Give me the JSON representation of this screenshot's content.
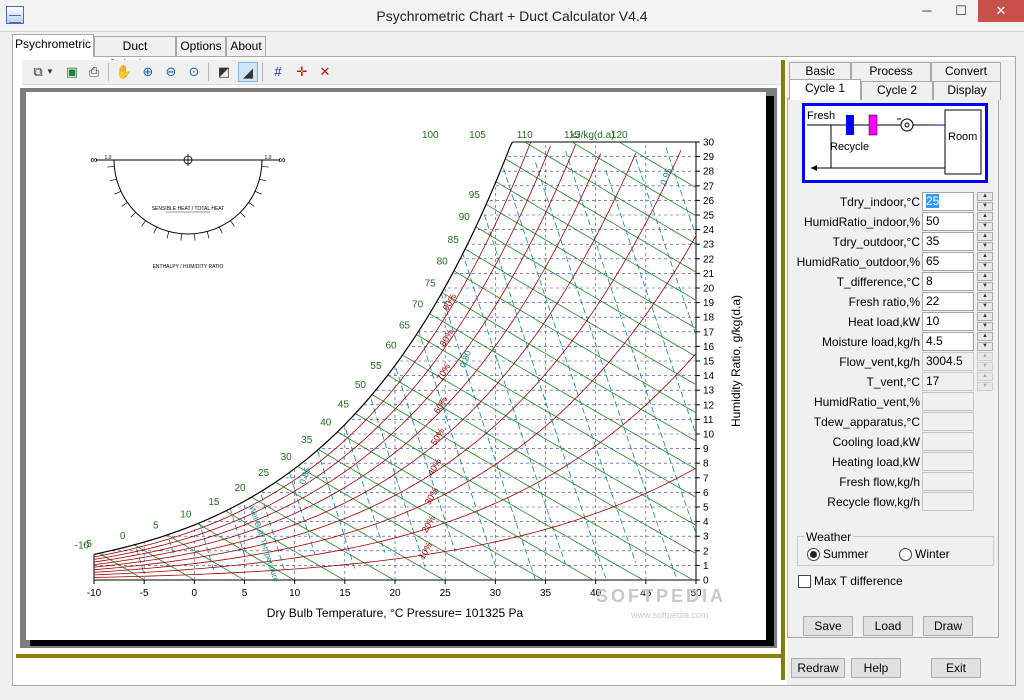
{
  "window": {
    "title": "Psychrometric Chart + Duct Calculator V4.4",
    "minimize": "─",
    "maximize": "☐",
    "close": "✕"
  },
  "main_tabs": [
    {
      "label": "Psychrometric"
    },
    {
      "label": "Duct Calculator"
    },
    {
      "label": "Options"
    },
    {
      "label": "About"
    }
  ],
  "toolbar": {
    "icons": [
      "copy-icon",
      "dropdown-arrow-icon",
      "save-image-icon",
      "print-icon",
      "pan-icon",
      "zoom-in-icon",
      "zoom-out-icon",
      "zoom-fit-icon",
      "draw-chart-icon",
      "draw-process-icon",
      "grid-icon",
      "crosshair-icon",
      "clear-point-icon"
    ]
  },
  "chart_data": {
    "type": "psychrometric",
    "xlabel": "Dry Bulb Temperature, °C",
    "pressure_label": "Pressure= 101325 Pa",
    "ylabel": "Humidity Ratio, g/kg(d.a)",
    "x_ticks": [
      -10,
      -5,
      0,
      5,
      10,
      15,
      20,
      25,
      30,
      35,
      40,
      45,
      50
    ],
    "xlim": [
      -10,
      50
    ],
    "y_ticks": [
      0,
      1,
      2,
      3,
      4,
      5,
      6,
      7,
      8,
      9,
      10,
      11,
      12,
      13,
      14,
      15,
      16,
      17,
      18,
      19,
      20,
      21,
      22,
      23,
      24,
      25,
      26,
      27,
      28,
      29,
      30
    ],
    "ylim": [
      0,
      30
    ],
    "enthalpy_ticks_left": [
      -10,
      -5,
      0,
      5,
      10,
      15,
      20,
      25,
      30,
      35,
      40,
      45,
      50,
      55,
      60,
      65,
      70,
      75,
      80,
      85,
      90,
      95
    ],
    "enthalpy_ticks_top": [
      100,
      105,
      110,
      115,
      120
    ],
    "enthalpy_unit": "kJ/kg(d.a)",
    "rh_labels": [
      "90%",
      "80%",
      "70%",
      "60%",
      "50%",
      "40%",
      "30%",
      "20%",
      "10%"
    ],
    "specific_volume_labels": [
      "0.85",
      "0.80",
      "0.95"
    ],
    "wet_bulb_label": "Wet Bulb Temperature",
    "protractor": {
      "sensible_label": "SENSIBLE HEAT / TOTAL HEAT",
      "enthalpy_label": "ENTHALPY / HUMIDITY RATIO",
      "left_symbol": "∞",
      "right_symbol": "∞",
      "left_end": "1.0",
      "right_end": "1.0"
    },
    "watermark": "SOFTPEDIA",
    "watermark_url": "www.softpedia.com"
  },
  "right_tabs_row1": [
    {
      "label": "Basic"
    },
    {
      "label": "Process"
    },
    {
      "label": "Convert"
    }
  ],
  "right_tabs_row2": [
    {
      "label": "Cycle 1"
    },
    {
      "label": "Cycle 2"
    },
    {
      "label": "Display"
    }
  ],
  "diagram": {
    "fresh": "Fresh",
    "recycle": "Recycle",
    "room": "Room"
  },
  "fields": [
    {
      "label": "Tdry_indoor,°C",
      "value": "25"
    },
    {
      "label": "HumidRatio_indoor,%",
      "value": "50"
    },
    {
      "label": "Tdry_outdoor,°C",
      "value": "35"
    },
    {
      "label": "HumidRatio_outdoor,%",
      "value": "65"
    },
    {
      "label": "T_difference,°C",
      "value": "8"
    },
    {
      "label": "Fresh ratio,%",
      "value": "22"
    },
    {
      "label": "Heat load,kW",
      "value": "10"
    },
    {
      "label": "Moisture load,kg/h",
      "value": "4.5"
    },
    {
      "label": "Flow_vent,kg/h",
      "value": "3004.5"
    },
    {
      "label": "T_vent,°C",
      "value": "17"
    },
    {
      "label": "HumidRatio_vent,%",
      "value": ""
    },
    {
      "label": "Tdew_apparatus,°C",
      "value": ""
    },
    {
      "label": "Cooling load,kW",
      "value": ""
    },
    {
      "label": "Heating load,kW",
      "value": ""
    },
    {
      "label": "Fresh flow,kg/h",
      "value": ""
    },
    {
      "label": "Recycle flow,kg/h",
      "value": ""
    }
  ],
  "weather": {
    "legend": "Weather",
    "summer": "Summer",
    "winter": "Winter",
    "selected": "Summer"
  },
  "max_t_difference": {
    "label": "Max T difference",
    "checked": false
  },
  "buttons": {
    "save": "Save",
    "load": "Load",
    "draw": "Draw",
    "redraw": "Redraw",
    "help": "Help",
    "exit": "Exit"
  }
}
